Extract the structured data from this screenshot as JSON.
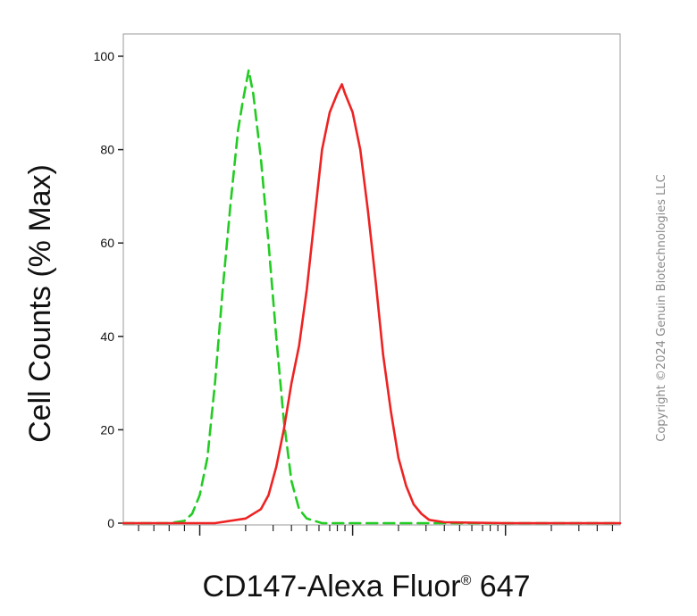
{
  "chart_data": {
    "type": "line",
    "title": "",
    "xlabel": "CD147-Alexa Fluor",
    "xlabel_mark": "®",
    "xlabel_suffix": " 647",
    "ylabel": "Cell Counts (% Max)",
    "x_scale": "log",
    "xlim": [
      -0.5,
      2.75
    ],
    "ylim": [
      0,
      100
    ],
    "yticks": [
      0,
      20,
      40,
      60,
      80,
      100
    ],
    "grid": false,
    "legend": "none",
    "series": [
      {
        "style": "dashed",
        "color": "#22cc22",
        "points": [
          [
            -0.5,
            0
          ],
          [
            -0.2,
            0
          ],
          [
            -0.1,
            0.5
          ],
          [
            -0.05,
            2
          ],
          [
            0.0,
            6
          ],
          [
            0.05,
            14
          ],
          [
            0.1,
            30
          ],
          [
            0.15,
            50
          ],
          [
            0.2,
            68
          ],
          [
            0.25,
            84
          ],
          [
            0.28,
            90
          ],
          [
            0.32,
            97
          ],
          [
            0.35,
            92
          ],
          [
            0.4,
            78
          ],
          [
            0.45,
            60
          ],
          [
            0.5,
            40
          ],
          [
            0.55,
            22
          ],
          [
            0.6,
            9
          ],
          [
            0.65,
            3
          ],
          [
            0.7,
            1
          ],
          [
            0.8,
            0
          ],
          [
            1.0,
            0
          ],
          [
            2.75,
            0
          ]
        ]
      },
      {
        "style": "solid",
        "color": "#ee2222",
        "points": [
          [
            -0.5,
            0
          ],
          [
            0.1,
            0
          ],
          [
            0.2,
            0.5
          ],
          [
            0.3,
            1
          ],
          [
            0.4,
            3
          ],
          [
            0.45,
            6
          ],
          [
            0.5,
            12
          ],
          [
            0.55,
            20
          ],
          [
            0.6,
            30
          ],
          [
            0.65,
            38
          ],
          [
            0.7,
            50
          ],
          [
            0.75,
            65
          ],
          [
            0.8,
            80
          ],
          [
            0.85,
            88
          ],
          [
            0.9,
            92
          ],
          [
            0.93,
            94
          ],
          [
            0.95,
            92
          ],
          [
            1.0,
            88
          ],
          [
            1.05,
            80
          ],
          [
            1.1,
            67
          ],
          [
            1.15,
            52
          ],
          [
            1.2,
            36
          ],
          [
            1.25,
            24
          ],
          [
            1.3,
            14
          ],
          [
            1.35,
            8
          ],
          [
            1.4,
            4
          ],
          [
            1.45,
            2
          ],
          [
            1.5,
            0.7
          ],
          [
            1.6,
            0.2
          ],
          [
            2.0,
            0
          ],
          [
            2.75,
            0
          ]
        ]
      }
    ],
    "x_decades": [
      0,
      1,
      2
    ],
    "x_minor": [
      -0.4,
      -0.3,
      -0.2,
      -0.1,
      0.3,
      0.48,
      0.6,
      0.7,
      0.78,
      0.85,
      0.9,
      0.95,
      1.3,
      1.48,
      1.6,
      1.7,
      1.78,
      1.85,
      1.9,
      1.95,
      2.3,
      2.48,
      2.6,
      2.7
    ]
  },
  "copyright": "Copyright ©2024 Genuin Biotechnologies LLC"
}
